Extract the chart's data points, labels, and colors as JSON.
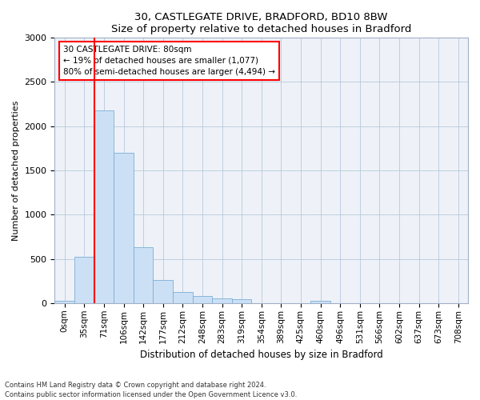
{
  "title": "30, CASTLEGATE DRIVE, BRADFORD, BD10 8BW",
  "subtitle": "Size of property relative to detached houses in Bradford",
  "xlabel": "Distribution of detached houses by size in Bradford",
  "ylabel": "Number of detached properties",
  "footnote1": "Contains HM Land Registry data © Crown copyright and database right 2024.",
  "footnote2": "Contains public sector information licensed under the Open Government Licence v3.0.",
  "annotation_title": "30 CASTLEGATE DRIVE: 80sqm",
  "annotation_line1": "← 19% of detached houses are smaller (1,077)",
  "annotation_line2": "80% of semi-detached houses are larger (4,494) →",
  "bar_color": "#cce0f5",
  "bar_edge_color": "#7bafd4",
  "categories": [
    "0sqm",
    "35sqm",
    "71sqm",
    "106sqm",
    "142sqm",
    "177sqm",
    "212sqm",
    "248sqm",
    "283sqm",
    "319sqm",
    "354sqm",
    "389sqm",
    "425sqm",
    "460sqm",
    "496sqm",
    "531sqm",
    "566sqm",
    "602sqm",
    "637sqm",
    "673sqm",
    "708sqm"
  ],
  "values": [
    30,
    520,
    2175,
    1700,
    630,
    265,
    130,
    80,
    50,
    40,
    0,
    0,
    0,
    30,
    0,
    0,
    0,
    0,
    0,
    0,
    0
  ],
  "ylim": [
    0,
    3000
  ],
  "yticks": [
    0,
    500,
    1000,
    1500,
    2000,
    2500,
    3000
  ],
  "red_line_x": 1.5,
  "background_color": "#eef2f8"
}
